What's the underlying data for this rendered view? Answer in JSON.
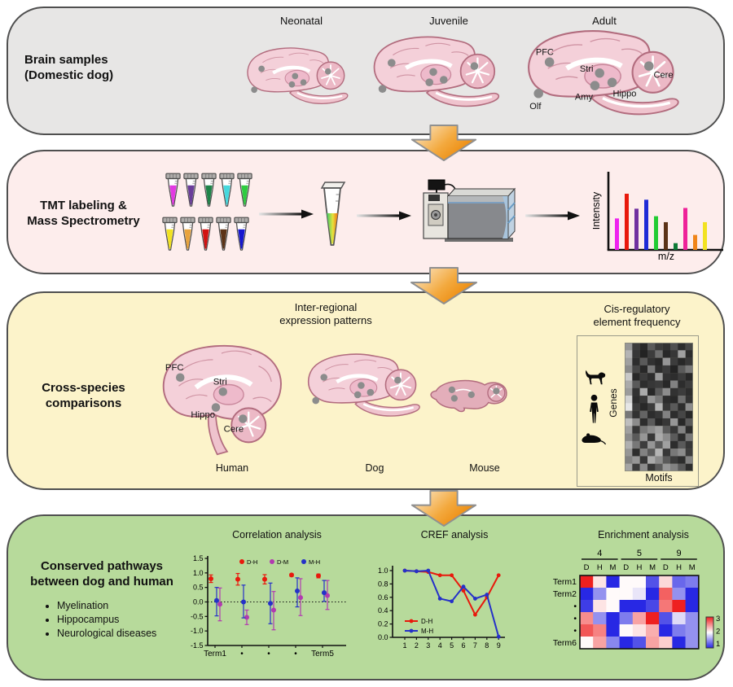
{
  "panels": {
    "brain_samples": {
      "title_line1": "Brain samples",
      "title_line2": "(Domestic dog)",
      "ages": [
        "Neonatal",
        "Juvenile",
        "Adult"
      ],
      "adult_region_labels": [
        "PFC",
        "Stri",
        "Cere",
        "Amy",
        "Hippo",
        "Olf"
      ]
    },
    "tmt": {
      "title_line1": "TMT labeling &",
      "title_line2": "Mass Spectrometry",
      "tube_colors_row1": [
        "#e23ae2",
        "#6a3d9a",
        "#1e8449",
        "#45d8dd",
        "#2ecc40"
      ],
      "tube_colors_row2": [
        "#f2e221",
        "#e8a33d",
        "#d21111",
        "#5c3317",
        "#1616cf"
      ]
    },
    "cross_species": {
      "title_line1": "Cross-species",
      "title_line2": "comparisons",
      "inter_regional_line1": "Inter-regional",
      "inter_regional_line2": "expression patterns",
      "species": [
        "Human",
        "Dog",
        "Mouse"
      ],
      "human_region_labels": [
        "PFC",
        "Stri",
        "Hippo",
        "Cere"
      ],
      "cis_line1": "Cis-regulatory",
      "cis_line2": "element frequency",
      "genes_label": "Genes",
      "motifs_label": "Motifs"
    },
    "conserved": {
      "title_line1": "Conserved pathways",
      "title_line2": "between dog and human",
      "bullets": [
        "Myelination",
        "Hippocampus",
        "Neurological diseases"
      ]
    }
  },
  "chart_data": [
    {
      "id": "ms-spectrum",
      "type": "bar",
      "title": "",
      "xlabel": "m/z",
      "ylabel": "Intensity",
      "bars": [
        {
          "color": "#ee22ee",
          "h": 0.42
        },
        {
          "color": "#e8190c",
          "h": 0.75
        },
        {
          "color": "#7030a0",
          "h": 0.55
        },
        {
          "color": "#1f2bd6",
          "h": 0.67
        },
        {
          "color": "#22cc33",
          "h": 0.45
        },
        {
          "color": "#5c3317",
          "h": 0.37
        },
        {
          "color": "#0e7a36",
          "h": 0.09
        },
        {
          "color": "#ee2299",
          "h": 0.56
        },
        {
          "color": "#f08519",
          "h": 0.2
        },
        {
          "color": "#f2e221",
          "h": 0.37
        }
      ]
    },
    {
      "id": "correlation",
      "type": "scatter",
      "title": "Correlation analysis",
      "categories": [
        "Term1",
        "•",
        "•",
        "•",
        "Term5"
      ],
      "ylim": [
        -1.5,
        1.5
      ],
      "yticks": [
        1.5,
        1.0,
        0.5,
        0.0,
        -0.5,
        -1.0,
        -1.5
      ],
      "zero_line": true,
      "series": [
        {
          "name": "D-H",
          "color": "#e8190c",
          "values": [
            0.8,
            0.78,
            0.78,
            0.93,
            0.9
          ],
          "err_lo": [
            0.13,
            0.2,
            0.16,
            0.05,
            0.07
          ],
          "err_hi": [
            0.13,
            0.2,
            0.16,
            0.04,
            0.06
          ]
        },
        {
          "name": "D-M",
          "color": "#b23ab0",
          "values": [
            -0.08,
            -0.53,
            -0.28,
            0.15,
            0.22
          ],
          "err_lo": [
            0.57,
            0.25,
            0.68,
            0.62,
            0.48
          ],
          "err_hi": [
            0.56,
            0.25,
            0.64,
            0.65,
            0.52
          ]
        },
        {
          "name": "M-H",
          "color": "#2531c8",
          "values": [
            0.05,
            0.0,
            -0.05,
            0.38,
            0.32
          ],
          "err_lo": [
            0.53,
            0.55,
            0.7,
            0.55,
            0.3
          ],
          "err_hi": [
            0.45,
            0.58,
            0.7,
            0.45,
            0.42
          ]
        }
      ]
    },
    {
      "id": "cref",
      "type": "line",
      "title": "CREF analysis",
      "x": [
        1,
        2,
        3,
        4,
        5,
        6,
        7,
        8,
        9
      ],
      "ylim": [
        0.0,
        1.0
      ],
      "yticks": [
        1.0,
        0.8,
        0.6,
        0.4,
        0.2,
        0.0
      ],
      "series": [
        {
          "name": "D-H",
          "color": "#e8190c",
          "values": [
            1.0,
            0.99,
            0.98,
            0.93,
            0.93,
            0.7,
            0.34,
            0.6,
            0.93
          ]
        },
        {
          "name": "M-H",
          "color": "#2531c8",
          "values": [
            1.0,
            0.99,
            1.0,
            0.58,
            0.54,
            0.76,
            0.58,
            0.64,
            0.01
          ]
        }
      ]
    },
    {
      "id": "enrichment",
      "type": "heatmap",
      "title": "Enrichment analysis",
      "col_groups": [
        "4",
        "5",
        "9"
      ],
      "col_labels": [
        "D",
        "H",
        "M",
        "D",
        "H",
        "M",
        "D",
        "H",
        "M"
      ],
      "row_labels": [
        "Term1",
        "Term2",
        "•",
        "•",
        "•",
        "Term6"
      ],
      "scale": {
        "min": 1,
        "max": 3,
        "ticks": [
          3,
          2,
          1
        ]
      },
      "values": [
        [
          3.0,
          2.1,
          1.0,
          2.0,
          2.0,
          1.2,
          2.15,
          1.3,
          1.4
        ],
        [
          1.0,
          1.5,
          2.0,
          2.0,
          1.9,
          1.0,
          2.7,
          1.5,
          1.0
        ],
        [
          1.1,
          2.1,
          2.0,
          1.0,
          1.0,
          1.15,
          2.6,
          3.0,
          1.0
        ],
        [
          2.5,
          1.5,
          1.0,
          1.4,
          2.4,
          3.0,
          1.2,
          1.85,
          1.5
        ],
        [
          2.75,
          2.55,
          1.0,
          2.0,
          2.1,
          2.35,
          1.0,
          1.4,
          1.5
        ],
        [
          2.0,
          2.4,
          1.45,
          1.0,
          1.2,
          2.4,
          2.2,
          1.0,
          1.5
        ]
      ]
    },
    {
      "id": "gene-motif",
      "type": "heatmap",
      "title": "Cis-regulatory element frequency",
      "xlabel": "Motifs",
      "ylabel": "Genes",
      "grayscale": true,
      "values": [
        [
          150,
          60,
          40,
          90,
          60,
          50,
          80,
          45,
          70
        ],
        [
          180,
          55,
          35,
          60,
          110,
          40,
          55,
          160,
          45
        ],
        [
          160,
          45,
          90,
          50,
          40,
          150,
          60,
          40,
          55
        ],
        [
          140,
          70,
          40,
          120,
          45,
          60,
          35,
          90,
          120
        ],
        [
          200,
          40,
          60,
          45,
          155,
          50,
          45,
          60,
          40
        ],
        [
          170,
          90,
          45,
          55,
          60,
          40,
          130,
          45,
          60
        ],
        [
          155,
          50,
          170,
          40,
          90,
          140,
          50,
          60,
          45
        ],
        [
          210,
          45,
          55,
          150,
          120,
          45,
          40,
          110,
          50
        ],
        [
          230,
          60,
          40,
          60,
          180,
          55,
          90,
          45,
          140
        ],
        [
          120,
          50,
          100,
          45,
          55,
          130,
          45,
          70,
          40
        ],
        [
          190,
          140,
          45,
          90,
          40,
          55,
          150,
          40,
          90
        ],
        [
          160,
          55,
          120,
          140,
          160,
          90,
          55,
          130,
          45
        ],
        [
          140,
          90,
          150,
          55,
          170,
          140,
          90,
          45,
          120
        ],
        [
          175,
          120,
          60,
          150,
          90,
          160,
          45,
          90,
          55
        ],
        [
          150,
          45,
          130,
          90,
          180,
          55,
          120,
          140,
          60
        ],
        [
          130,
          150,
          55,
          170,
          140,
          90,
          60,
          45,
          130
        ],
        [
          165,
          60,
          140,
          55,
          90,
          150,
          130,
          90,
          45
        ]
      ]
    }
  ]
}
